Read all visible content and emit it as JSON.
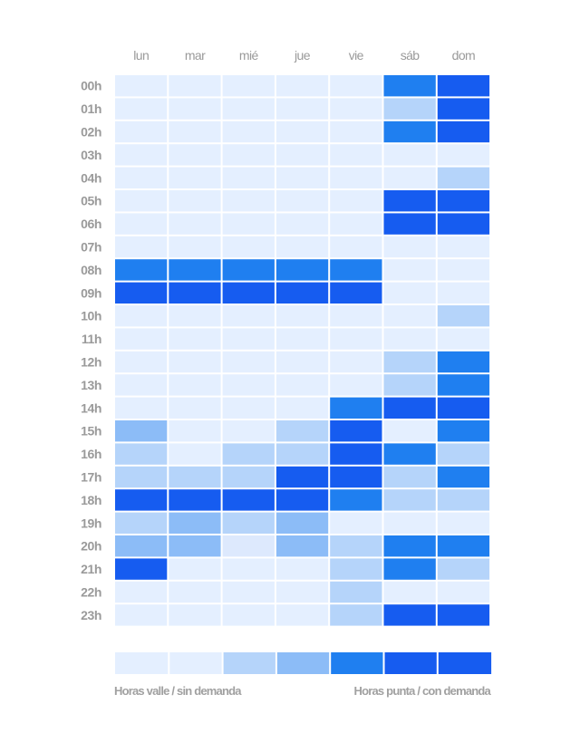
{
  "chart_data": {
    "type": "heatmap",
    "days": [
      "lun",
      "mar",
      "mié",
      "jue",
      "vie",
      "sáb",
      "dom"
    ],
    "hours": [
      "00h",
      "01h",
      "02h",
      "03h",
      "04h",
      "05h",
      "06h",
      "07h",
      "08h",
      "09h",
      "10h",
      "11h",
      "12h",
      "13h",
      "14h",
      "15h",
      "16h",
      "17h",
      "18h",
      "19h",
      "20h",
      "21h",
      "22h",
      "23h"
    ],
    "levels": [
      [
        0,
        0,
        0,
        0,
        0,
        4,
        5
      ],
      [
        0,
        0,
        0,
        0,
        0,
        2,
        5
      ],
      [
        0,
        0,
        0,
        0,
        0,
        4,
        5
      ],
      [
        0,
        0,
        0,
        0,
        0,
        0,
        0
      ],
      [
        0,
        0,
        0,
        0,
        0,
        0,
        2
      ],
      [
        0,
        0,
        0,
        0,
        0,
        5,
        5
      ],
      [
        0,
        0,
        0,
        0,
        0,
        5,
        5
      ],
      [
        0,
        0,
        0,
        0,
        0,
        0,
        0
      ],
      [
        4,
        4,
        4,
        4,
        4,
        0,
        0
      ],
      [
        5,
        5,
        5,
        5,
        5,
        0,
        0
      ],
      [
        0,
        0,
        0,
        0,
        0,
        0,
        2
      ],
      [
        0,
        0,
        0,
        0,
        0,
        0,
        0
      ],
      [
        0,
        0,
        0,
        0,
        0,
        2,
        4
      ],
      [
        0,
        0,
        0,
        0,
        0,
        2,
        4
      ],
      [
        0,
        0,
        0,
        0,
        4,
        5,
        5
      ],
      [
        3,
        0,
        0,
        2,
        5,
        0,
        4
      ],
      [
        2,
        0,
        2,
        2,
        5,
        4,
        2
      ],
      [
        2,
        2,
        2,
        5,
        5,
        2,
        4
      ],
      [
        5,
        5,
        5,
        5,
        4,
        2,
        2
      ],
      [
        2,
        3,
        2,
        3,
        0,
        0,
        0
      ],
      [
        3,
        3,
        1,
        3,
        2,
        4,
        4
      ],
      [
        5,
        0,
        0,
        0,
        2,
        4,
        2
      ],
      [
        0,
        0,
        0,
        0,
        2,
        0,
        0
      ],
      [
        0,
        0,
        0,
        0,
        2,
        5,
        5
      ]
    ],
    "color_scale": [
      "#e4efff",
      "#dde9fd",
      "#b5d4fa",
      "#8cbcf7",
      "#1f7ff0",
      "#165cf0"
    ],
    "legend": {
      "segments": [
        0,
        0,
        2,
        3,
        4,
        5,
        5
      ],
      "left_label": "Horas valle / sin demanda",
      "right_label": "Horas punta / con demanda"
    }
  }
}
